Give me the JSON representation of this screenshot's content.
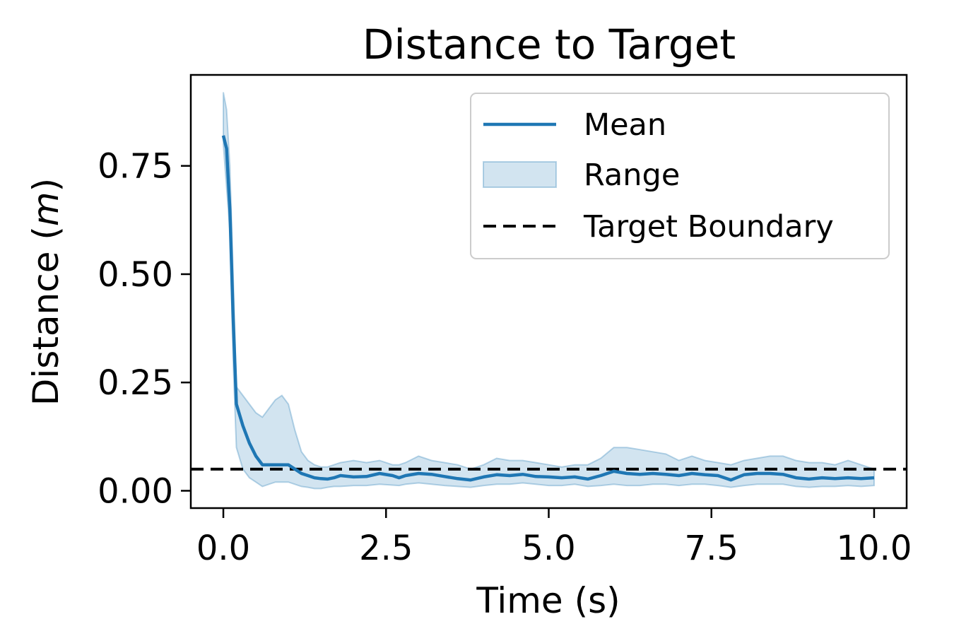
{
  "chart_data": {
    "type": "line",
    "title": "Distance to Target",
    "xlabel": "Time (s)",
    "ylabel_main": "Distance (",
    "ylabel_italic": "m",
    "ylabel_close": ")",
    "xlim": [
      -0.5,
      10.5
    ],
    "ylim": [
      -0.04,
      0.96
    ],
    "x_ticks": [
      0.0,
      2.5,
      5.0,
      7.5,
      10.0
    ],
    "x_tick_labels": [
      "0.0",
      "2.5",
      "5.0",
      "7.5",
      "10.0"
    ],
    "y_ticks": [
      0.0,
      0.25,
      0.5,
      0.75
    ],
    "y_tick_labels": [
      "0.00",
      "0.25",
      "0.50",
      "0.75"
    ],
    "grid": false,
    "legend_placement": "upper right",
    "colors": {
      "mean": "#1f77b4",
      "range_fill": "#1f77b4",
      "boundary": "#000000"
    },
    "legend": {
      "mean": "Mean",
      "range": "Range",
      "boundary": "Target Boundary"
    },
    "target_boundary": 0.05,
    "series": [
      {
        "name": "Mean",
        "x": [
          0.0,
          0.05,
          0.1,
          0.15,
          0.2,
          0.3,
          0.4,
          0.5,
          0.6,
          0.7,
          0.8,
          0.9,
          1.0,
          1.1,
          1.2,
          1.3,
          1.4,
          1.5,
          1.6,
          1.7,
          1.8,
          2.0,
          2.2,
          2.4,
          2.6,
          2.7,
          2.8,
          3.0,
          3.2,
          3.4,
          3.6,
          3.8,
          4.0,
          4.2,
          4.4,
          4.6,
          4.8,
          5.0,
          5.2,
          5.4,
          5.6,
          5.8,
          6.0,
          6.2,
          6.4,
          6.6,
          6.8,
          7.0,
          7.2,
          7.4,
          7.6,
          7.8,
          8.0,
          8.2,
          8.4,
          8.6,
          8.8,
          9.0,
          9.2,
          9.4,
          9.6,
          9.8,
          10.0
        ],
        "values": [
          0.82,
          0.79,
          0.65,
          0.4,
          0.2,
          0.15,
          0.11,
          0.08,
          0.06,
          0.06,
          0.06,
          0.06,
          0.06,
          0.05,
          0.04,
          0.035,
          0.03,
          0.028,
          0.027,
          0.03,
          0.035,
          0.032,
          0.033,
          0.04,
          0.035,
          0.03,
          0.035,
          0.04,
          0.038,
          0.033,
          0.028,
          0.025,
          0.032,
          0.037,
          0.035,
          0.038,
          0.033,
          0.032,
          0.03,
          0.032,
          0.027,
          0.035,
          0.045,
          0.04,
          0.038,
          0.04,
          0.038,
          0.035,
          0.04,
          0.037,
          0.035,
          0.025,
          0.037,
          0.04,
          0.04,
          0.038,
          0.03,
          0.027,
          0.03,
          0.028,
          0.03,
          0.028,
          0.03
        ]
      },
      {
        "name": "Range",
        "x": [
          0.0,
          0.05,
          0.1,
          0.15,
          0.2,
          0.3,
          0.4,
          0.5,
          0.6,
          0.7,
          0.8,
          0.9,
          1.0,
          1.1,
          1.2,
          1.3,
          1.4,
          1.5,
          1.6,
          1.7,
          1.8,
          2.0,
          2.2,
          2.4,
          2.6,
          2.7,
          2.8,
          3.0,
          3.2,
          3.4,
          3.6,
          3.8,
          4.0,
          4.2,
          4.4,
          4.6,
          4.8,
          5.0,
          5.2,
          5.4,
          5.6,
          5.8,
          6.0,
          6.2,
          6.4,
          6.6,
          6.8,
          7.0,
          7.2,
          7.4,
          7.6,
          7.8,
          8.0,
          8.2,
          8.4,
          8.6,
          8.8,
          9.0,
          9.2,
          9.4,
          9.6,
          9.8,
          10.0
        ],
        "upper": [
          0.92,
          0.88,
          0.75,
          0.5,
          0.24,
          0.22,
          0.2,
          0.18,
          0.17,
          0.19,
          0.21,
          0.22,
          0.2,
          0.14,
          0.09,
          0.07,
          0.06,
          0.055,
          0.055,
          0.06,
          0.065,
          0.07,
          0.065,
          0.07,
          0.06,
          0.06,
          0.065,
          0.08,
          0.07,
          0.065,
          0.06,
          0.05,
          0.06,
          0.075,
          0.07,
          0.07,
          0.065,
          0.06,
          0.055,
          0.06,
          0.06,
          0.075,
          0.1,
          0.1,
          0.095,
          0.09,
          0.085,
          0.07,
          0.08,
          0.07,
          0.065,
          0.06,
          0.07,
          0.075,
          0.08,
          0.08,
          0.07,
          0.065,
          0.065,
          0.06,
          0.07,
          0.06,
          0.05
        ]
      },
      {
        "name": "Range-lower",
        "x": [
          0.0,
          0.05,
          0.1,
          0.15,
          0.2,
          0.3,
          0.4,
          0.5,
          0.6,
          0.7,
          0.8,
          0.9,
          1.0,
          1.1,
          1.2,
          1.3,
          1.4,
          1.5,
          1.6,
          1.7,
          1.8,
          2.0,
          2.2,
          2.4,
          2.6,
          2.7,
          2.8,
          3.0,
          3.2,
          3.4,
          3.6,
          3.8,
          4.0,
          4.2,
          4.4,
          4.6,
          4.8,
          5.0,
          5.2,
          5.4,
          5.6,
          5.8,
          6.0,
          6.2,
          6.4,
          6.6,
          6.8,
          7.0,
          7.2,
          7.4,
          7.6,
          7.8,
          8.0,
          8.2,
          8.4,
          8.6,
          8.8,
          9.0,
          9.2,
          9.4,
          9.6,
          9.8,
          10.0
        ],
        "lower": [
          0.8,
          0.7,
          0.6,
          0.3,
          0.1,
          0.05,
          0.03,
          0.02,
          0.01,
          0.015,
          0.02,
          0.02,
          0.02,
          0.015,
          0.01,
          0.008,
          0.005,
          0.005,
          0.008,
          0.01,
          0.01,
          0.012,
          0.012,
          0.015,
          0.013,
          0.012,
          0.015,
          0.018,
          0.015,
          0.012,
          0.01,
          0.008,
          0.012,
          0.015,
          0.015,
          0.018,
          0.015,
          0.012,
          0.012,
          0.015,
          0.01,
          0.012,
          0.015,
          0.012,
          0.012,
          0.015,
          0.015,
          0.012,
          0.015,
          0.015,
          0.012,
          0.008,
          0.012,
          0.015,
          0.015,
          0.015,
          0.01,
          0.008,
          0.01,
          0.01,
          0.012,
          0.01,
          0.012
        ]
      }
    ]
  }
}
